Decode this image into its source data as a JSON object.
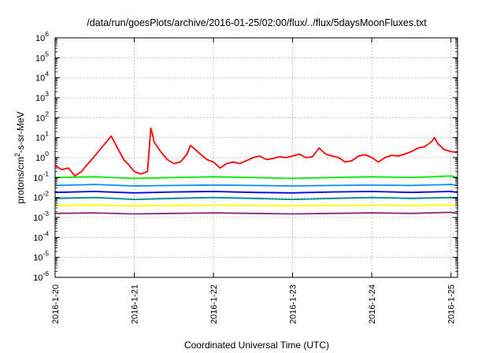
{
  "chart_data": {
    "type": "line",
    "title": "/data/run/goesPlots/archive/2016-01-25/02:00/flux/../flux/5daysMoonFluxes.txt",
    "xlabel": "Coordinated Universal Time (UTC)",
    "ylabel": {
      "prefix": "protons/cm",
      "sup": "2",
      "suffix": "-s-sr-MeV"
    },
    "y_scale": "log",
    "ylim": [
      1e-06,
      1000000.0
    ],
    "xlim": [
      "2016-01-20T00:00",
      "2016-01-25T02:00"
    ],
    "grid": true,
    "y_ticks": [
      {
        "value": 1e-06,
        "base": "10",
        "exp": "-6"
      },
      {
        "value": 1e-05,
        "base": "10",
        "exp": "-5"
      },
      {
        "value": 0.0001,
        "base": "10",
        "exp": "-4"
      },
      {
        "value": 0.001,
        "base": "10",
        "exp": "-3"
      },
      {
        "value": 0.01,
        "base": "10",
        "exp": "-2"
      },
      {
        "value": 0.1,
        "base": "10",
        "exp": "-1"
      },
      {
        "value": 1.0,
        "base": "10",
        "exp": "0"
      },
      {
        "value": 10.0,
        "base": "10",
        "exp": "1"
      },
      {
        "value": 100.0,
        "base": "10",
        "exp": "2"
      },
      {
        "value": 1000.0,
        "base": "10",
        "exp": "3"
      },
      {
        "value": 10000.0,
        "base": "10",
        "exp": "4"
      },
      {
        "value": 100000.0,
        "base": "10",
        "exp": "5"
      },
      {
        "value": 1000000.0,
        "base": "10",
        "exp": "6"
      }
    ],
    "x_ticks": [
      {
        "value": "2016-01-20T00:00",
        "label": "2016-1-20"
      },
      {
        "value": "2016-01-21T00:00",
        "label": "2016-1-21"
      },
      {
        "value": "2016-01-22T00:00",
        "label": "2016-1-22"
      },
      {
        "value": "2016-01-23T00:00",
        "label": "2016-1-23"
      },
      {
        "value": "2016-01-24T00:00",
        "label": "2016-1-24"
      },
      {
        "value": "2016-01-25T00:00",
        "label": "2016-1-25"
      }
    ],
    "series": [
      {
        "color": "#ff0000",
        "x": [
          "2016-01-20T00:00",
          "2016-01-20T02:00",
          "2016-01-20T04:00",
          "2016-01-20T06:00",
          "2016-01-20T08:00",
          "2016-01-20T10:00",
          "2016-01-20T12:00",
          "2016-01-20T14:00",
          "2016-01-20T15:30",
          "2016-01-20T17:00",
          "2016-01-20T18:30",
          "2016-01-20T19:30",
          "2016-01-20T21:00",
          "2016-01-20T22:00",
          "2016-01-21T00:00",
          "2016-01-21T02:00",
          "2016-01-21T04:00",
          "2016-01-21T05:00",
          "2016-01-21T05:30",
          "2016-01-21T06:00",
          "2016-01-21T08:00",
          "2016-01-21T10:00",
          "2016-01-21T12:00",
          "2016-01-21T14:00",
          "2016-01-21T16:00",
          "2016-01-21T17:00",
          "2016-01-21T18:00",
          "2016-01-21T20:00",
          "2016-01-21T22:00",
          "2016-01-22T00:00",
          "2016-01-22T02:00",
          "2016-01-22T04:00",
          "2016-01-22T06:00",
          "2016-01-22T08:00",
          "2016-01-22T10:00",
          "2016-01-22T12:00",
          "2016-01-22T14:00",
          "2016-01-22T16:00",
          "2016-01-22T18:00",
          "2016-01-22T20:00",
          "2016-01-22T22:00",
          "2016-01-23T00:00",
          "2016-01-23T02:00",
          "2016-01-23T04:00",
          "2016-01-23T06:00",
          "2016-01-23T08:00",
          "2016-01-23T10:00",
          "2016-01-23T12:00",
          "2016-01-23T14:00",
          "2016-01-23T16:00",
          "2016-01-23T18:00",
          "2016-01-23T20:00",
          "2016-01-23T22:00",
          "2016-01-24T00:00",
          "2016-01-24T02:00",
          "2016-01-24T04:00",
          "2016-01-24T06:00",
          "2016-01-24T08:00",
          "2016-01-24T10:00",
          "2016-01-24T12:00",
          "2016-01-24T14:00",
          "2016-01-24T16:00",
          "2016-01-24T18:00",
          "2016-01-24T19:00",
          "2016-01-24T20:00",
          "2016-01-24T22:00",
          "2016-01-25T00:00",
          "2016-01-25T02:00"
        ],
        "values": [
          0.4,
          0.25,
          0.3,
          0.12,
          0.2,
          0.5,
          1.2,
          3,
          6,
          12,
          4,
          2,
          0.7,
          0.5,
          0.2,
          0.15,
          0.2,
          30,
          15,
          6,
          2,
          0.8,
          0.5,
          0.6,
          1.5,
          4,
          3,
          1.5,
          0.8,
          0.6,
          0.3,
          0.5,
          0.6,
          0.5,
          0.7,
          1.0,
          1.2,
          0.8,
          0.9,
          1.1,
          1.0,
          1.2,
          1.5,
          1.0,
          1.1,
          3,
          1.5,
          1.2,
          1.0,
          0.6,
          0.7,
          1.2,
          1.4,
          1.0,
          0.6,
          1.0,
          1.3,
          1.2,
          1.5,
          2,
          3,
          3.5,
          6,
          10,
          5,
          2.5,
          2,
          1.8
        ]
      },
      {
        "color": "#00ee00",
        "x": [
          "2016-01-20T00:00",
          "2016-01-20T12:00",
          "2016-01-21T00:00",
          "2016-01-21T12:00",
          "2016-01-22T00:00",
          "2016-01-22T12:00",
          "2016-01-23T00:00",
          "2016-01-23T12:00",
          "2016-01-24T00:00",
          "2016-01-24T12:00",
          "2016-01-25T00:00",
          "2016-01-25T02:00"
        ],
        "values": [
          0.1,
          0.11,
          0.09,
          0.1,
          0.11,
          0.1,
          0.09,
          0.1,
          0.11,
          0.1,
          0.12,
          0.1
        ]
      },
      {
        "color": "#0090ff",
        "x": [
          "2016-01-20T00:00",
          "2016-01-20T12:00",
          "2016-01-21T00:00",
          "2016-01-21T12:00",
          "2016-01-22T00:00",
          "2016-01-22T12:00",
          "2016-01-23T00:00",
          "2016-01-23T12:00",
          "2016-01-24T00:00",
          "2016-01-24T12:00",
          "2016-01-25T00:00",
          "2016-01-25T02:00"
        ],
        "values": [
          0.04,
          0.045,
          0.038,
          0.04,
          0.042,
          0.04,
          0.038,
          0.04,
          0.042,
          0.04,
          0.045,
          0.04
        ]
      },
      {
        "color": "#0000ee",
        "x": [
          "2016-01-20T00:00",
          "2016-01-20T12:00",
          "2016-01-21T00:00",
          "2016-01-21T12:00",
          "2016-01-22T00:00",
          "2016-01-22T12:00",
          "2016-01-23T00:00",
          "2016-01-23T12:00",
          "2016-01-24T00:00",
          "2016-01-24T12:00",
          "2016-01-25T00:00",
          "2016-01-25T02:00"
        ],
        "values": [
          0.018,
          0.02,
          0.017,
          0.019,
          0.02,
          0.018,
          0.017,
          0.019,
          0.02,
          0.018,
          0.02,
          0.018
        ]
      },
      {
        "color": "#008b8b",
        "x": [
          "2016-01-20T00:00",
          "2016-01-20T12:00",
          "2016-01-21T00:00",
          "2016-01-21T12:00",
          "2016-01-22T00:00",
          "2016-01-22T12:00",
          "2016-01-23T00:00",
          "2016-01-23T12:00",
          "2016-01-24T00:00",
          "2016-01-24T12:00",
          "2016-01-25T00:00",
          "2016-01-25T02:00"
        ],
        "values": [
          0.009,
          0.01,
          0.008,
          0.009,
          0.01,
          0.009,
          0.008,
          0.009,
          0.01,
          0.009,
          0.01,
          0.009
        ]
      },
      {
        "color": "#ffff00",
        "x": [
          "2016-01-20T00:00",
          "2016-01-20T12:00",
          "2016-01-21T00:00",
          "2016-01-21T12:00",
          "2016-01-22T00:00",
          "2016-01-22T12:00",
          "2016-01-23T00:00",
          "2016-01-23T12:00",
          "2016-01-24T00:00",
          "2016-01-24T12:00",
          "2016-01-25T00:00",
          "2016-01-25T02:00"
        ],
        "values": [
          0.004,
          0.0042,
          0.0038,
          0.004,
          0.0041,
          0.004,
          0.0039,
          0.004,
          0.0041,
          0.004,
          0.0042,
          0.004
        ]
      },
      {
        "color": "#8b2870",
        "x": [
          "2016-01-20T00:00",
          "2016-01-20T12:00",
          "2016-01-21T00:00",
          "2016-01-21T12:00",
          "2016-01-22T00:00",
          "2016-01-22T12:00",
          "2016-01-23T00:00",
          "2016-01-23T12:00",
          "2016-01-24T00:00",
          "2016-01-24T12:00",
          "2016-01-25T00:00",
          "2016-01-25T02:00"
        ],
        "values": [
          0.0016,
          0.0017,
          0.0015,
          0.0016,
          0.0017,
          0.0016,
          0.0015,
          0.0016,
          0.0017,
          0.0016,
          0.0018,
          0.0016
        ]
      }
    ]
  }
}
